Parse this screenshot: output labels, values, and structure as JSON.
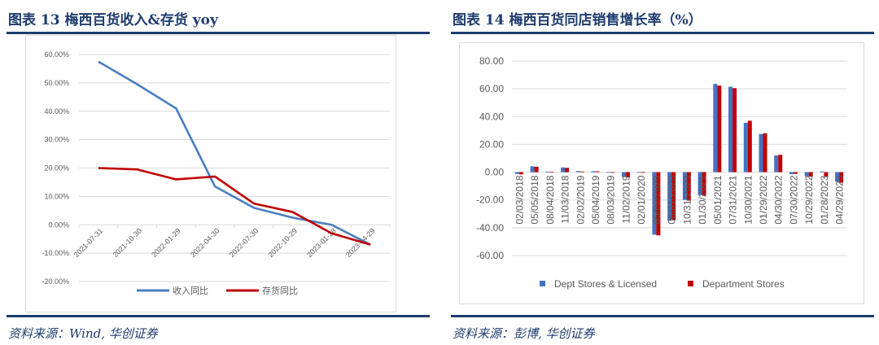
{
  "left": {
    "title": "图表 13   梅西百货收入&存货 yoy",
    "source": "资料来源：Wind, 华创证券"
  },
  "right": {
    "title": "图表 14   梅西百货同店销售增长率（%）",
    "source": "资料来源：彭博, 华创证券"
  },
  "colors": {
    "blue": "#4a7ebf",
    "red": "#c00000",
    "rule": "#1f3c6e",
    "grid": "#d9d9d9",
    "axis_text": "#595959"
  },
  "chart_data": [
    {
      "type": "line",
      "title": "梅西百货收入&存货 yoy",
      "categories": [
        "2021-07-31",
        "2021-10-30",
        "2022-01-29",
        "2022-04-30",
        "2022-07-30",
        "2022-10-29",
        "2023-01-28",
        "2023-04-29"
      ],
      "series": [
        {
          "name": "收入同比",
          "color": "#4a7ebf",
          "values": [
            57.5,
            49.5,
            41.0,
            13.5,
            6.0,
            2.5,
            0.0,
            -7.0
          ]
        },
        {
          "name": "存货同比",
          "color": "#c00000",
          "values": [
            20.0,
            19.5,
            16.0,
            17.0,
            7.5,
            4.5,
            -3.0,
            -7.0
          ]
        }
      ],
      "yticks": [
        "60.00%",
        "50.00%",
        "40.00%",
        "30.00%",
        "20.00%",
        "10.00%",
        "0.00%",
        "-10.00%",
        "-20.00%"
      ],
      "ylim": [
        -20,
        60
      ],
      "xlabel": "",
      "ylabel": "",
      "grid": true,
      "legend_position": "bottom"
    },
    {
      "type": "bar",
      "title": "梅西百货同店销售增长率（%）",
      "categories": [
        "02/03/2018",
        "05/05/2018",
        "08/04/2018",
        "11/03/2018",
        "02/02/2019",
        "05/04/2019",
        "08/03/2019",
        "11/02/2019",
        "02/01/2020",
        "05/02/2020",
        "08/01/2020",
        "10/31/2020",
        "01/30/2021",
        "05/01/2021",
        "07/31/2021",
        "10/30/2021",
        "01/29/2022",
        "04/30/2022",
        "07/30/2022",
        "10/29/2022",
        "01/28/2023",
        "04/29/2023"
      ],
      "series": [
        {
          "name": "Dept Stores & Licensed",
          "color": "#4472c4",
          "values": [
            -1.3,
            4.2,
            0.4,
            3.4,
            0.8,
            0.7,
            0.0,
            -3.5,
            -0.3,
            -45.0,
            -35.0,
            -20.0,
            -16.5,
            63.5,
            61.5,
            35.5,
            27.5,
            12.0,
            -1.5,
            -3.0,
            0.5,
            -6.8
          ]
        },
        {
          "name": "Department Stores",
          "color": "#c00000",
          "values": [
            -1.6,
            3.9,
            0.2,
            3.1,
            0.5,
            0.6,
            0.0,
            -3.8,
            -0.5,
            -45.5,
            -34.5,
            -20.5,
            -17.0,
            62.3,
            60.5,
            37.0,
            28.0,
            12.5,
            -1.2,
            -3.2,
            -3.5,
            -7.6
          ]
        }
      ],
      "yticks": [
        "80.00",
        "60.00",
        "40.00",
        "20.00",
        "0.00",
        "-20.00",
        "-40.00",
        "-60.00"
      ],
      "ylim": [
        -60,
        80
      ],
      "xlabel": "",
      "ylabel": "",
      "grid": true,
      "legend_position": "bottom"
    }
  ]
}
